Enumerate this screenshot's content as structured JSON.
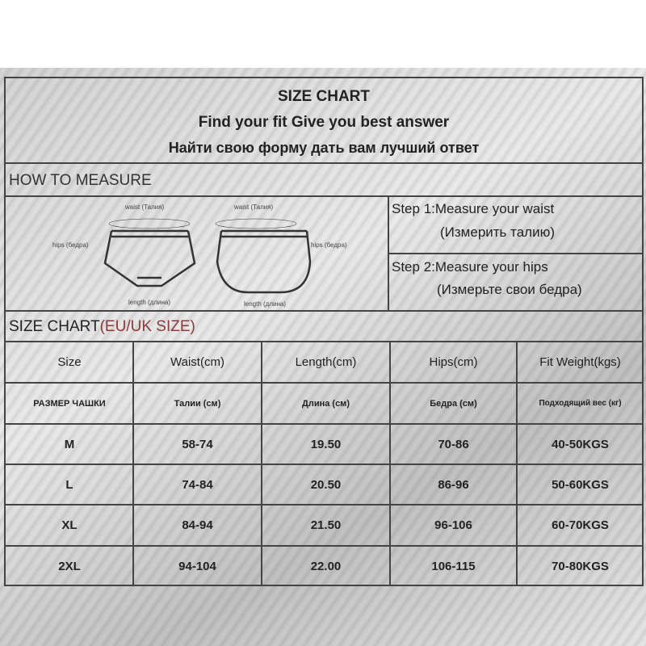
{
  "header": {
    "title": "SIZE CHART",
    "subtitle_en": "Find your fit Give you best answer",
    "subtitle_ru": "Найти свою форму дать вам лучший ответ"
  },
  "measure": {
    "heading": "HOW TO MEASURE",
    "diagram_labels": {
      "waist": "waist (Талия)",
      "hips": "hips (бедра)",
      "length": "length (длина)"
    },
    "step1": "Step 1:Measure your waist",
    "step1_ru": "(Измерить талию)",
    "step2": "Step 2:Measure your hips",
    "step2_ru": "(Измерьте свои бедра)"
  },
  "chart": {
    "heading": "SIZE CHART",
    "heading_accent": "(EU/UK SIZE)",
    "accent_color": "#8b3a3a",
    "headers": [
      "Size",
      "Waist(cm)",
      "Length(cm)",
      "Hips(cm)",
      "Fit  Weight(kgs)"
    ],
    "headers_ru": [
      "РАЗМЕР ЧАШКИ",
      "Талии (см)",
      "Длина (см)",
      "Бедра (см)",
      "Подходящий вес (кг)"
    ],
    "rows": [
      [
        "M",
        "58-74",
        "19.50",
        "70-86",
        "40-50KGS"
      ],
      [
        "L",
        "74-84",
        "20.50",
        "86-96",
        "50-60KGS"
      ],
      [
        "XL",
        "84-94",
        "21.50",
        "96-106",
        "60-70KGS"
      ],
      [
        "2XL",
        "94-104",
        "22.00",
        "106-115",
        "70-80KGS"
      ]
    ]
  }
}
